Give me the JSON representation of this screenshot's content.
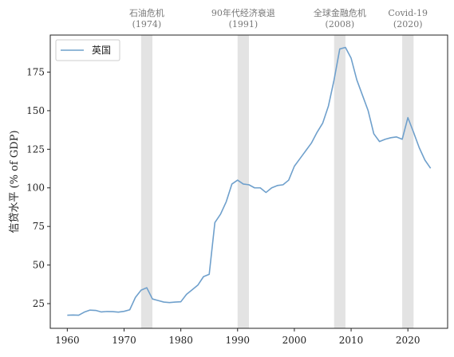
{
  "chart_data": {
    "type": "line",
    "title": "",
    "xlabel": "",
    "ylabel": "信贷水平 (% of GDP)",
    "xlim": [
      1957,
      2027
    ],
    "ylim": [
      9,
      199
    ],
    "xticks": [
      1960,
      1970,
      1980,
      1990,
      2000,
      2010,
      2020
    ],
    "yticks": [
      25,
      50,
      75,
      100,
      125,
      150,
      175
    ],
    "grid": false,
    "legend_position": "top-left",
    "series": [
      {
        "name": "英国",
        "color": "#6fa0cc",
        "x": [
          1960,
          1961,
          1962,
          1963,
          1964,
          1965,
          1966,
          1967,
          1968,
          1969,
          1970,
          1971,
          1972,
          1973,
          1974,
          1975,
          1976,
          1977,
          1978,
          1979,
          1980,
          1981,
          1982,
          1983,
          1984,
          1985,
          1986,
          1987,
          1988,
          1989,
          1990,
          1991,
          1992,
          1993,
          1994,
          1995,
          1996,
          1997,
          1998,
          1999,
          2000,
          2001,
          2002,
          2003,
          2004,
          2005,
          2006,
          2007,
          2008,
          2009,
          2010,
          2011,
          2012,
          2013,
          2014,
          2015,
          2016,
          2017,
          2018,
          2019,
          2020,
          2021,
          2022,
          2023,
          2024
        ],
        "values": [
          17.5,
          17.6,
          17.5,
          19.5,
          20.8,
          20.6,
          19.6,
          19.9,
          19.8,
          19.5,
          20.0,
          21.0,
          29.0,
          33.7,
          35.3,
          28.0,
          27.0,
          26.0,
          25.7,
          26.0,
          26.2,
          31.0,
          34.0,
          37.0,
          42.5,
          44.0,
          77.5,
          83.0,
          91.0,
          102.5,
          105.0,
          102.5,
          102.0,
          100.0,
          100.0,
          97.0,
          100.0,
          101.5,
          102.0,
          105.0,
          114.0,
          119.0,
          124.0,
          129.0,
          136.0,
          142.0,
          153.0,
          170.0,
          190.0,
          191.0,
          184.0,
          170.0,
          160.0,
          150.0,
          135.0,
          130.0,
          131.5,
          132.5,
          133.0,
          131.5,
          145.5,
          136.0,
          126.0,
          118.0,
          112.7
        ]
      }
    ],
    "events": [
      {
        "label": "石油危机",
        "year_label": "(1974)",
        "start": 1973,
        "end": 1975
      },
      {
        "label": "90年代经济衰退",
        "year_label": "(1991)",
        "start": 1990,
        "end": 1992
      },
      {
        "label": "全球金融危机",
        "year_label": "(2008)",
        "start": 2007,
        "end": 2009
      },
      {
        "label": "Covid-19",
        "year_label": "(2020)",
        "start": 2019,
        "end": 2021
      }
    ]
  }
}
